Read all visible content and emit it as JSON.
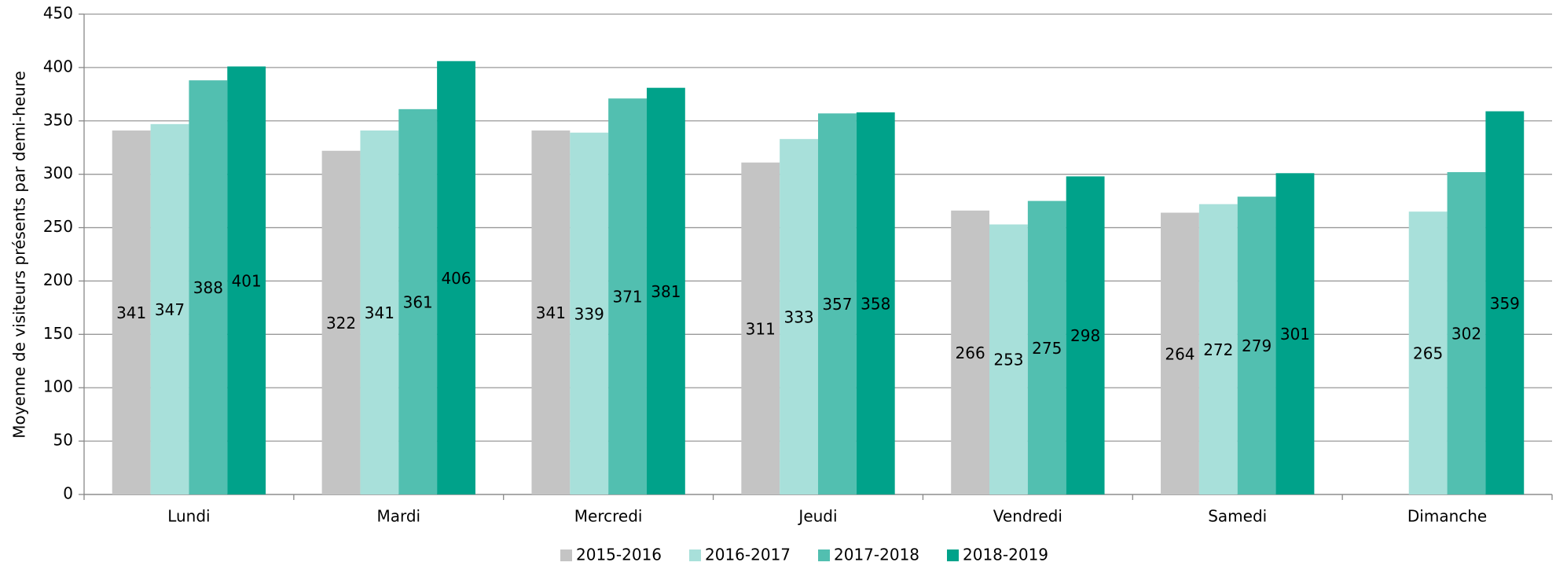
{
  "chart_data": {
    "type": "bar",
    "y_label": "Moyenne de visiteurs présents par demi-heure",
    "categories": [
      "Lundi",
      "Mardi",
      "Mercredi",
      "Jeudi",
      "Vendredi",
      "Samedi",
      "Dimanche"
    ],
    "series": [
      {
        "name": "2015-2016",
        "color": "#c4c4c4",
        "values": [
          341,
          322,
          341,
          311,
          266,
          264,
          null
        ]
      },
      {
        "name": "2016-2017",
        "color": "#a8e0da",
        "values": [
          347,
          341,
          339,
          333,
          253,
          272,
          265
        ]
      },
      {
        "name": "2017-2018",
        "color": "#52bfb0",
        "values": [
          388,
          361,
          371,
          357,
          275,
          279,
          302
        ]
      },
      {
        "name": "2018-2019",
        "color": "#00a28a",
        "values": [
          401,
          406,
          381,
          358,
          298,
          301,
          359
        ]
      }
    ],
    "ylim": [
      0,
      450
    ],
    "yticks": [
      0,
      50,
      100,
      150,
      200,
      250,
      300,
      350,
      400,
      450
    ],
    "grid": true,
    "legend": "bottom"
  }
}
